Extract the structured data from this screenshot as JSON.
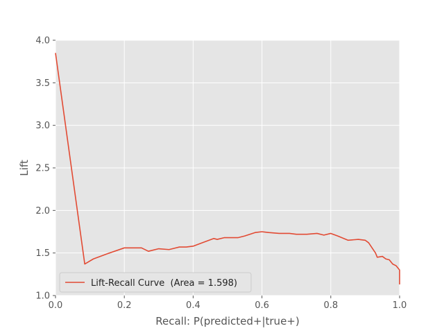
{
  "chart_data": {
    "type": "line",
    "title": "",
    "xlabel": "Recall: P(predicted+|true+)",
    "ylabel": "Lift",
    "xlim": [
      0.0,
      1.0
    ],
    "ylim": [
      1.0,
      4.0
    ],
    "xticks": [
      "0.0",
      "0.2",
      "0.4",
      "0.6",
      "0.8",
      "1.0"
    ],
    "yticks": [
      "1.0",
      "1.5",
      "2.0",
      "2.5",
      "3.0",
      "3.5",
      "4.0"
    ],
    "grid": true,
    "legend_position": "lower-left",
    "colors": {
      "plot_background": "#e5e5e5",
      "grid": "#ffffff",
      "line": "#e24a33"
    },
    "series": [
      {
        "name": "Lift-Recall Curve  (Area = 1.598)",
        "x": [
          0.0,
          0.085,
          0.11,
          0.15,
          0.2,
          0.25,
          0.27,
          0.3,
          0.33,
          0.36,
          0.38,
          0.4,
          0.42,
          0.46,
          0.47,
          0.49,
          0.5,
          0.53,
          0.55,
          0.58,
          0.6,
          0.62,
          0.65,
          0.68,
          0.7,
          0.73,
          0.76,
          0.78,
          0.8,
          0.82,
          0.85,
          0.88,
          0.9,
          0.91,
          0.92,
          0.93,
          0.935,
          0.95,
          0.96,
          0.97,
          0.98,
          0.99,
          1.0,
          1.0
        ],
        "y": [
          3.85,
          1.37,
          1.43,
          1.49,
          1.56,
          1.56,
          1.52,
          1.55,
          1.54,
          1.57,
          1.57,
          1.58,
          1.61,
          1.67,
          1.66,
          1.68,
          1.68,
          1.68,
          1.7,
          1.74,
          1.75,
          1.74,
          1.73,
          1.73,
          1.72,
          1.72,
          1.73,
          1.71,
          1.73,
          1.7,
          1.65,
          1.66,
          1.65,
          1.62,
          1.56,
          1.5,
          1.45,
          1.46,
          1.43,
          1.42,
          1.37,
          1.35,
          1.3,
          1.13
        ]
      }
    ]
  }
}
